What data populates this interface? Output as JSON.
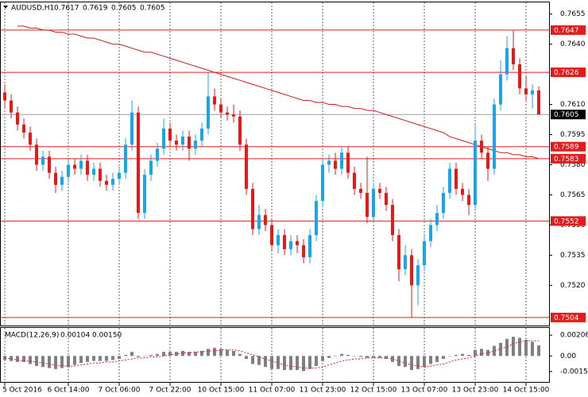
{
  "chart_data": {
    "type": "candlestick",
    "symbol": "AUDUSD,H1",
    "candles": [
      [
        0.7616,
        0.762,
        0.7608,
        0.7612
      ],
      [
        0.7612,
        0.7615,
        0.7603,
        0.7606
      ],
      [
        0.7606,
        0.7609,
        0.7597,
        0.76
      ],
      [
        0.76,
        0.7603,
        0.7593,
        0.7596
      ],
      [
        0.7596,
        0.7599,
        0.7587,
        0.759
      ],
      [
        0.759,
        0.7593,
        0.7577,
        0.758
      ],
      [
        0.758,
        0.7587,
        0.7577,
        0.7584
      ],
      [
        0.7584,
        0.7587,
        0.7573,
        0.7576
      ],
      [
        0.7576,
        0.7579,
        0.7566,
        0.757
      ],
      [
        0.757,
        0.7577,
        0.7567,
        0.7574
      ],
      [
        0.7574,
        0.7583,
        0.7571,
        0.758
      ],
      [
        0.758,
        0.7583,
        0.7575,
        0.7578
      ],
      [
        0.7578,
        0.7585,
        0.7575,
        0.7582
      ],
      [
        0.7582,
        0.7585,
        0.7572,
        0.7575
      ],
      [
        0.7575,
        0.7581,
        0.7572,
        0.7578
      ],
      [
        0.7578,
        0.7581,
        0.7569,
        0.7572
      ],
      [
        0.7572,
        0.7575,
        0.7567,
        0.757
      ],
      [
        0.757,
        0.7576,
        0.7567,
        0.7573
      ],
      [
        0.7573,
        0.7579,
        0.757,
        0.7576
      ],
      [
        0.7576,
        0.7593,
        0.7573,
        0.759
      ],
      [
        0.759,
        0.7612,
        0.7587,
        0.7606
      ],
      [
        0.7606,
        0.7609,
        0.7553,
        0.7556
      ],
      [
        0.7556,
        0.7578,
        0.7553,
        0.7575
      ],
      [
        0.7575,
        0.7585,
        0.7572,
        0.7582
      ],
      [
        0.7582,
        0.7591,
        0.7579,
        0.7588
      ],
      [
        0.7588,
        0.7603,
        0.7585,
        0.7598
      ],
      [
        0.7598,
        0.7601,
        0.7589,
        0.7592
      ],
      [
        0.7592,
        0.7595,
        0.7587,
        0.759
      ],
      [
        0.759,
        0.7597,
        0.7587,
        0.7594
      ],
      [
        0.7594,
        0.7597,
        0.7582,
        0.7588
      ],
      [
        0.7588,
        0.7595,
        0.7585,
        0.7592
      ],
      [
        0.7592,
        0.7601,
        0.7589,
        0.7598
      ],
      [
        0.7598,
        0.7626,
        0.7595,
        0.7614
      ],
      [
        0.7614,
        0.7618,
        0.7607,
        0.761
      ],
      [
        0.761,
        0.7613,
        0.7603,
        0.7606
      ],
      [
        0.7606,
        0.7609,
        0.7602,
        0.7605
      ],
      [
        0.7605,
        0.761,
        0.7601,
        0.7604
      ],
      [
        0.7604,
        0.7607,
        0.7587,
        0.759
      ],
      [
        0.759,
        0.7593,
        0.7565,
        0.7568
      ],
      [
        0.7568,
        0.7571,
        0.7545,
        0.7548
      ],
      [
        0.7548,
        0.756,
        0.7545,
        0.7555
      ],
      [
        0.7555,
        0.7558,
        0.7547,
        0.755
      ],
      [
        0.755,
        0.7553,
        0.7537,
        0.754
      ],
      [
        0.754,
        0.7548,
        0.7536,
        0.7545
      ],
      [
        0.7545,
        0.7548,
        0.7535,
        0.7538
      ],
      [
        0.7538,
        0.7545,
        0.7535,
        0.7542
      ],
      [
        0.7542,
        0.7545,
        0.7536,
        0.754
      ],
      [
        0.754,
        0.7543,
        0.7531,
        0.7534
      ],
      [
        0.7534,
        0.7548,
        0.7531,
        0.7545
      ],
      [
        0.7545,
        0.7565,
        0.7542,
        0.7562
      ],
      [
        0.7562,
        0.7583,
        0.7559,
        0.758
      ],
      [
        0.758,
        0.7585,
        0.7576,
        0.7582
      ],
      [
        0.7582,
        0.7586,
        0.7575,
        0.7578
      ],
      [
        0.7578,
        0.7589,
        0.7575,
        0.7586
      ],
      [
        0.7586,
        0.7589,
        0.7573,
        0.7576
      ],
      [
        0.7576,
        0.7579,
        0.7565,
        0.7568
      ],
      [
        0.7568,
        0.7571,
        0.7563,
        0.7566
      ],
      [
        0.7566,
        0.7584,
        0.7551,
        0.7554
      ],
      [
        0.7554,
        0.7571,
        0.7551,
        0.7568
      ],
      [
        0.7568,
        0.7571,
        0.7563,
        0.7566
      ],
      [
        0.7566,
        0.7569,
        0.7557,
        0.756
      ],
      [
        0.756,
        0.7563,
        0.7542,
        0.7545
      ],
      [
        0.7545,
        0.7548,
        0.7522,
        0.7528
      ],
      [
        0.7528,
        0.754,
        0.7525,
        0.7535
      ],
      [
        0.7535,
        0.7538,
        0.7504,
        0.752
      ],
      [
        0.752,
        0.7533,
        0.751,
        0.753
      ],
      [
        0.753,
        0.7545,
        0.7527,
        0.7542
      ],
      [
        0.7542,
        0.7553,
        0.7539,
        0.755
      ],
      [
        0.755,
        0.756,
        0.7547,
        0.7556
      ],
      [
        0.7556,
        0.7569,
        0.7553,
        0.7566
      ],
      [
        0.7566,
        0.7581,
        0.7563,
        0.7578
      ],
      [
        0.7578,
        0.7581,
        0.7565,
        0.7568
      ],
      [
        0.7568,
        0.7571,
        0.7562,
        0.7565
      ],
      [
        0.7565,
        0.7568,
        0.7555,
        0.756
      ],
      [
        0.756,
        0.76,
        0.7557,
        0.7592
      ],
      [
        0.7592,
        0.7595,
        0.7583,
        0.7586
      ],
      [
        0.7586,
        0.7589,
        0.7572,
        0.7578
      ],
      [
        0.7578,
        0.7613,
        0.7575,
        0.761
      ],
      [
        0.761,
        0.7632,
        0.7607,
        0.7625
      ],
      [
        0.7625,
        0.7644,
        0.7622,
        0.7638
      ],
      [
        0.7638,
        0.7647,
        0.7627,
        0.763
      ],
      [
        0.763,
        0.7633,
        0.7615,
        0.7618
      ],
      [
        0.7618,
        0.7624,
        0.7612,
        0.7615
      ],
      [
        0.7615,
        0.762,
        0.7608,
        0.7617
      ],
      [
        0.7617,
        0.7619,
        0.7605,
        0.7605
      ]
    ],
    "categories": [
      "5 Oct 2016",
      null,
      null,
      null,
      null,
      null,
      null,
      null,
      null,
      null,
      "6 Oct 14:00",
      null,
      null,
      null,
      null,
      null,
      null,
      null,
      "7 Oct 06:00",
      null,
      null,
      null,
      null,
      null,
      null,
      null,
      "7 Oct 22:00",
      null,
      null,
      null,
      null,
      null,
      null,
      null,
      "10 Oct 15:00",
      null,
      null,
      null,
      null,
      null,
      null,
      null,
      "11 Oct 07:00",
      null,
      null,
      null,
      null,
      null,
      null,
      null,
      "11 Oct 23:00",
      null,
      null,
      null,
      null,
      null,
      null,
      null,
      "12 Oct 15:00",
      null,
      null,
      null,
      null,
      null,
      null,
      null,
      "13 Oct 07:00",
      null,
      null,
      null,
      null,
      null,
      null,
      null,
      "13 Oct 23:00",
      null,
      null,
      null,
      null,
      null,
      null,
      null,
      "14 Oct 15:00",
      null,
      null
    ],
    "ma": {
      "color": "#c81e1e",
      "values": [
        null,
        null,
        0.7649,
        0.7649,
        0.7648,
        0.7648,
        0.7647,
        0.7647,
        0.7646,
        0.7646,
        0.7645,
        0.7645,
        0.7644,
        0.7643,
        0.7643,
        0.7642,
        0.7641,
        0.764,
        0.764,
        0.7639,
        0.7638,
        0.7637,
        0.7636,
        0.7636,
        0.7635,
        0.7634,
        0.7633,
        0.7632,
        0.7631,
        0.763,
        0.7629,
        0.7628,
        0.7627,
        0.7626,
        0.7625,
        0.7624,
        0.7623,
        0.7622,
        0.7621,
        0.762,
        0.7619,
        0.7618,
        0.7617,
        0.7616,
        0.7615,
        0.7614,
        0.7613,
        0.7612,
        0.7612,
        0.7611,
        0.7611,
        0.761,
        0.761,
        0.7609,
        0.7609,
        0.7608,
        0.7608,
        0.7607,
        0.7607,
        0.7606,
        0.7605,
        0.7604,
        0.7603,
        0.7602,
        0.7601,
        0.76,
        0.7599,
        0.7598,
        0.7597,
        0.7596,
        0.7594,
        0.7593,
        0.7592,
        0.7591,
        0.759,
        0.7589,
        0.7588,
        0.7587,
        0.7586,
        0.7586,
        0.7585,
        0.7585,
        0.7584,
        0.7584,
        0.7583
      ]
    },
    "bull_color": "#1aa6e6",
    "bear_color": "#e41b1b",
    "ylim": [
      0.75,
      0.766
    ],
    "yticks": [
      0.7655,
      {
        "value": 0.764,
        "label": "0.7640"
      },
      {
        "value": 0.761,
        "label": "0.7610"
      },
      0.7595,
      {
        "value": 0.758,
        "label": "0.7580"
      },
      0.7565,
      {
        "value": 0.755,
        "label": "0.7550"
      },
      0.7535,
      {
        "value": 0.752,
        "label": "0.7520"
      }
    ],
    "levels": [
      0.7647,
      0.7626,
      0.7589,
      0.7583,
      0.7552,
      0.7504
    ],
    "level_color": "#e41b1b",
    "current_price": 0.7605,
    "macd": {
      "name": "MACD(12,26,9)",
      "histogram": [
        -0.0004,
        -0.0005,
        -0.0006,
        -0.0006,
        -0.0008,
        -0.001,
        -0.0011,
        -0.0012,
        -0.0013,
        -0.0012,
        -0.0011,
        -0.0009,
        -0.0007,
        -0.0006,
        -0.0005,
        -0.0005,
        -0.0005,
        -0.0004,
        -0.0003,
        0.0001,
        0.0004,
        -0.0001,
        0.0,
        0.0001,
        0.0002,
        0.0004,
        0.0004,
        0.0004,
        0.0005,
        0.0004,
        0.0004,
        0.0005,
        0.0007,
        0.0008,
        0.0007,
        0.0006,
        0.0005,
        0.0002,
        -0.0003,
        -0.0008,
        -0.0009,
        -0.0011,
        -0.0013,
        -0.0013,
        -0.0014,
        -0.0014,
        -0.0014,
        -0.0015,
        -0.0013,
        -0.001,
        -0.0005,
        -0.0002,
        0.0,
        0.0002,
        0.0001,
        0.0,
        -0.0001,
        -0.0002,
        -0.0002,
        -0.0002,
        -0.0003,
        -0.0006,
        -0.001,
        -0.0011,
        -0.0014,
        -0.0013,
        -0.0011,
        -0.0008,
        -0.0006,
        -0.0003,
        0.0,
        0.0001,
        0.0002,
        0.0001,
        0.0006,
        0.0007,
        0.0006,
        0.001,
        0.0013,
        0.0017,
        0.0019,
        0.0018,
        0.0016,
        0.0014,
        0.00104
      ],
      "signal": [
        -0.0002,
        -0.0003,
        -0.0004,
        -0.0005,
        -0.0005,
        -0.0006,
        -0.0007,
        -0.0008,
        -0.0009,
        -0.001,
        -0.001,
        -0.001,
        -0.0009,
        -0.0008,
        -0.0007,
        -0.0007,
        -0.0006,
        -0.0006,
        -0.0005,
        -0.0004,
        -0.0003,
        -0.0002,
        -0.0002,
        -0.0001,
        -0.0001,
        0.0,
        0.0001,
        0.0002,
        0.0003,
        0.0003,
        0.0004,
        0.0004,
        0.0005,
        0.0005,
        0.0006,
        0.0006,
        0.0006,
        0.0005,
        0.0003,
        0.0001,
        -0.0001,
        -0.0003,
        -0.0005,
        -0.0007,
        -0.0009,
        -0.001,
        -0.0011,
        -0.0012,
        -0.0012,
        -0.0012,
        -0.0011,
        -0.0009,
        -0.0007,
        -0.0005,
        -0.0004,
        -0.0003,
        -0.0003,
        -0.0002,
        -0.0002,
        -0.0002,
        -0.0002,
        -0.0003,
        -0.0005,
        -0.0007,
        -0.0009,
        -0.001,
        -0.0011,
        -0.001,
        -0.0009,
        -0.0008,
        -0.0006,
        -0.0004,
        -0.0003,
        -0.0002,
        0.0,
        0.0002,
        0.0003,
        0.0005,
        0.0007,
        0.0009,
        0.0012,
        0.0014,
        0.0015,
        0.0015,
        0.0015
      ],
      "value_labels": [
        "0.00104",
        "0.00150"
      ],
      "histogram_color": "#808080",
      "signal_color": "#e41b1b",
      "ylim": [
        -0.0025,
        0.0027
      ],
      "yticks": [
        0.00206,
        {
          "value": 0,
          "label": "0.00"
        },
        -0.00155
      ]
    }
  }
}
